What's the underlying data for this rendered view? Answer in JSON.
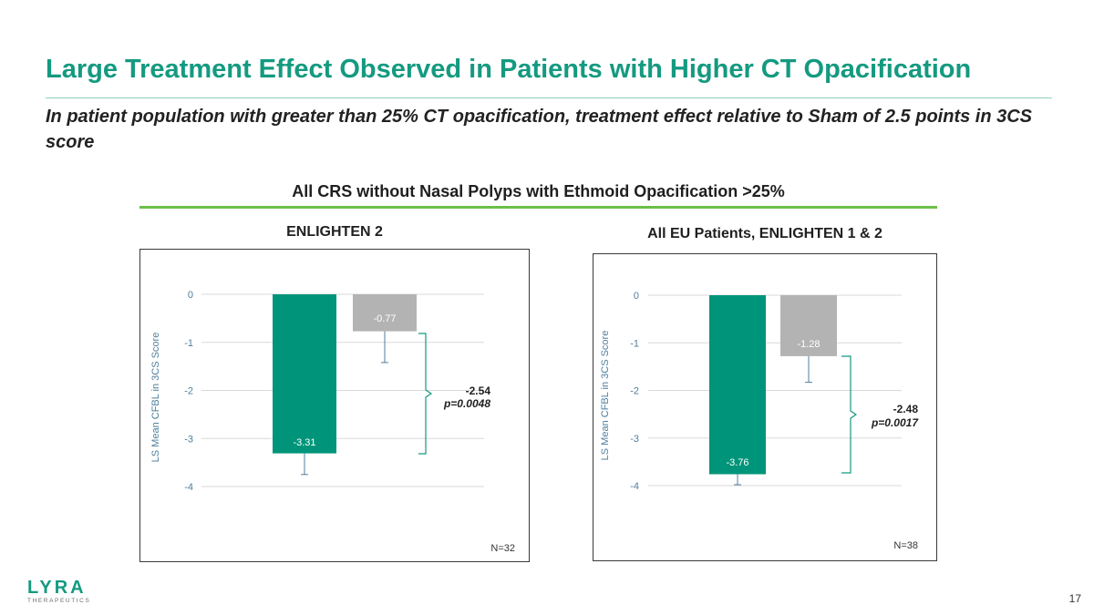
{
  "slide": {
    "title": "Large Treatment Effect Observed in Patients with Higher CT Opacification",
    "subtitle": "In patient population with greater than 25% CT opacification, treatment effect relative to Sham of 2.5 points in 3CS score",
    "section_heading": "All CRS without Nasal Polyps with Ethmoid Opacification >25%",
    "page_number": "17"
  },
  "logo": {
    "name": "LYRA",
    "tagline": "THERAPEUTICS"
  },
  "colors": {
    "title": "#149a80",
    "treatment_bar": "#00957a",
    "sham_bar": "#b3b3b3",
    "section_rule": "#6cbf4a",
    "axis_text": "#4f7f9e"
  },
  "chart_data": [
    {
      "type": "bar",
      "title": "ENLIGHTEN 2",
      "ylabel": "LS Mean CFBL in 3CS Score",
      "ylim": [
        -4,
        0
      ],
      "yticks": [
        0,
        -1,
        -2,
        -3,
        -4
      ],
      "grid": true,
      "series": [
        {
          "name": "Treatment",
          "value": -3.31,
          "label": "-3.31",
          "error_low": -3.75
        },
        {
          "name": "Sham",
          "value": -0.77,
          "label": "-0.77",
          "error_low": -1.42
        }
      ],
      "difference": {
        "value": "-2.54",
        "p": "p=0.0048"
      },
      "n_label": "N=32"
    },
    {
      "type": "bar",
      "title": "All EU Patients, ENLIGHTEN 1 & 2",
      "ylabel": "LS Mean CFBL in 3CS Score",
      "ylim": [
        -4,
        0
      ],
      "yticks": [
        0,
        -1,
        -2,
        -3,
        -4
      ],
      "grid": true,
      "series": [
        {
          "name": "Treatment",
          "value": -3.76,
          "label": "-3.76",
          "error_low": -3.98
        },
        {
          "name": "Sham",
          "value": -1.28,
          "label": "-1.28",
          "error_low": -1.83
        }
      ],
      "difference": {
        "value": "-2.48",
        "p": "p=0.0017"
      },
      "n_label": "N=38"
    }
  ]
}
